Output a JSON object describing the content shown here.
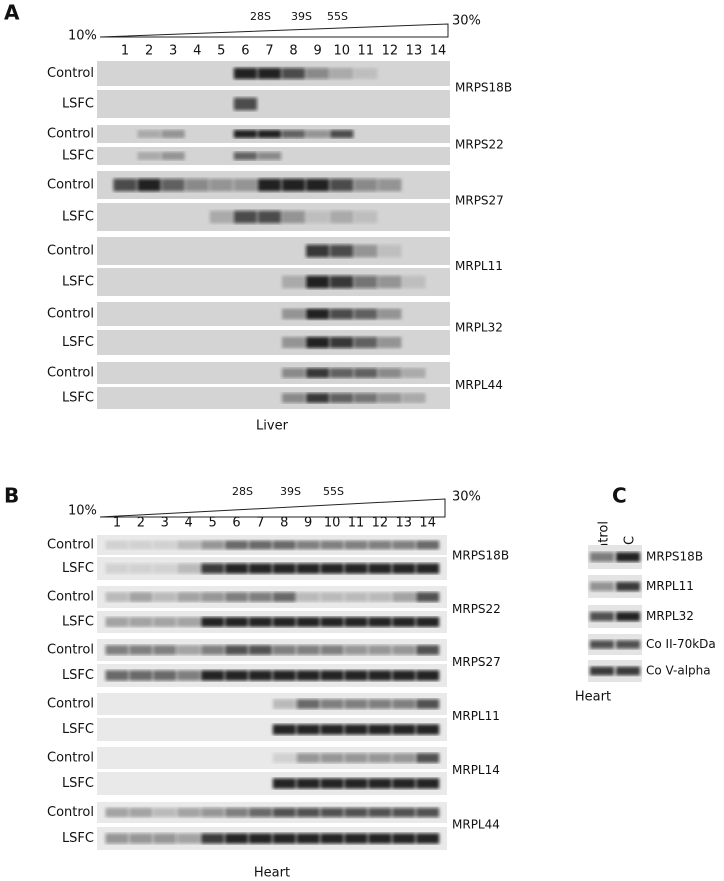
{
  "panel_a": {
    "letter": "A",
    "gradient_start": "10%",
    "gradient_end": "30%",
    "markers": [
      "28S",
      "39S",
      "55S"
    ],
    "fractions": [
      "1",
      "2",
      "3",
      "4",
      "5",
      "6",
      "7",
      "8",
      "9",
      "10",
      "11",
      "12",
      "13",
      "14"
    ],
    "conditions": [
      "Control",
      "LSFC"
    ],
    "proteins": [
      "MRPS18B",
      "MRPS22",
      "MRPS27",
      "MRPL11",
      "MRPL32",
      "MRPL44"
    ],
    "tissue": "Liver"
  },
  "panel_b": {
    "letter": "B",
    "gradient_start": "10%",
    "gradient_end": "30%",
    "markers": [
      "28S",
      "39S",
      "55S"
    ],
    "fractions": [
      "1",
      "2",
      "3",
      "4",
      "5",
      "6",
      "7",
      "8",
      "9",
      "10",
      "11",
      "12",
      "13",
      "14"
    ],
    "conditions": [
      "Control",
      "LSFC"
    ],
    "proteins": [
      "MRPS18B",
      "MRPS22",
      "MRPS27",
      "MRPL11",
      "MRPL14",
      "MRPL44"
    ],
    "tissue": "Heart"
  },
  "panel_c": {
    "letter": "C",
    "lanes": [
      "Control",
      "LSFC"
    ],
    "proteins": [
      "MRPS18B",
      "MRPL11",
      "MRPL32",
      "Co II-70kDa",
      "Co V-alpha"
    ],
    "tissue": "Heart"
  }
}
